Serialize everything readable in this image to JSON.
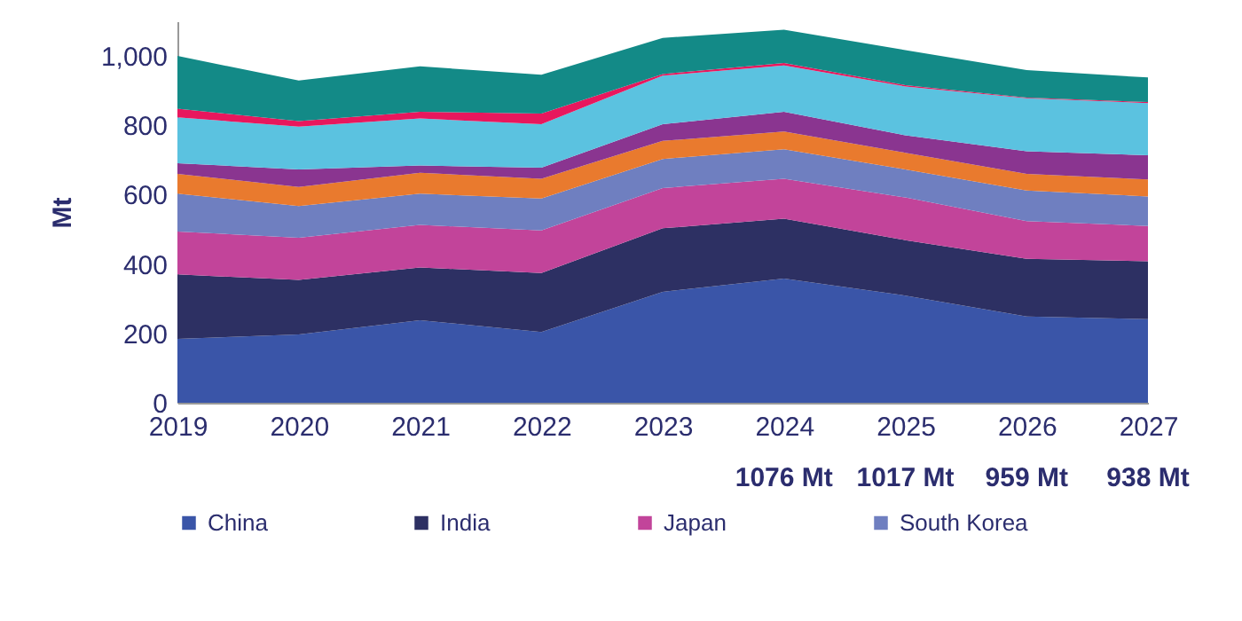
{
  "chart_data": {
    "type": "area",
    "stacked": true,
    "ylabel": "Mt",
    "categories": [
      "2019",
      "2020",
      "2021",
      "2022",
      "2023",
      "2024",
      "2025",
      "2026",
      "2027"
    ],
    "ylim": [
      0,
      1100
    ],
    "yticks": [
      0,
      {
        "value": 200,
        "label": "200"
      },
      {
        "value": 400,
        "label": "400"
      },
      {
        "value": 600,
        "label": "600"
      },
      {
        "value": 800,
        "label": "800"
      },
      {
        "value": 1000,
        "label": "1,000"
      }
    ],
    "grid": false,
    "legend": "bottom",
    "series": [
      {
        "name": "China",
        "color": "#3a55a8",
        "values": [
          184,
          197,
          238,
          204,
          320,
          358,
          309,
          249,
          241
        ]
      },
      {
        "name": "India",
        "color": "#2d3063",
        "values": [
          186,
          157,
          152,
          170,
          183,
          173,
          160,
          166,
          167
        ]
      },
      {
        "name": "Japan",
        "color": "#c2449a",
        "values": [
          124,
          122,
          123,
          123,
          116,
          115,
          123,
          109,
          102
        ]
      },
      {
        "name": "South Korea",
        "color": "#6f7fc0",
        "values": [
          109,
          91,
          90,
          92,
          84,
          85,
          81,
          88,
          85
        ]
      },
      {
        "color": "#e97a2e",
        "values": [
          57,
          55,
          60,
          57,
          52,
          51,
          48,
          48,
          49
        ]
      },
      {
        "color": "#8a3590",
        "values": [
          31,
          51,
          21,
          32,
          48,
          57,
          50,
          65,
          70
        ]
      },
      {
        "color": "#5bc2e0",
        "values": [
          132,
          123,
          136,
          125,
          140,
          134,
          141,
          153,
          150
        ]
      },
      {
        "color": "#e8175d",
        "values": [
          25,
          16,
          19,
          31,
          5,
          7,
          4,
          2,
          3
        ]
      },
      {
        "color": "#138a87",
        "values": [
          152,
          117,
          131,
          112,
          104,
          96,
          101,
          79,
          71
        ]
      }
    ],
    "annotations": [
      "1076 Mt",
      "1017 Mt",
      "959 Mt",
      "938 Mt"
    ]
  }
}
